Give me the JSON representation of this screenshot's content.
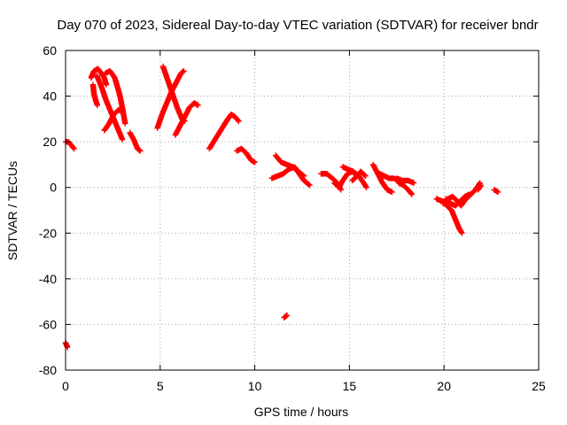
{
  "chart_data": {
    "type": "scatter",
    "title": "Day 070 of 2023, Sidereal Day-to-day VTEC variation (SDTVAR) for receiver bndr",
    "xlabel": "GPS time / hours",
    "ylabel": "SDTVAR / TECUs",
    "xlim": [
      0,
      25
    ],
    "ylim": [
      -80,
      60
    ],
    "xticks": [
      0,
      5,
      10,
      15,
      20,
      25
    ],
    "yticks": [
      -80,
      -60,
      -40,
      -20,
      0,
      20,
      40,
      60
    ],
    "grid": true,
    "marker": "+",
    "color": "#ff0000",
    "series": [
      {
        "name": "SDTVAR",
        "tracks": [
          [
            [
              0.0,
              -68
            ],
            [
              0.05,
              -69
            ],
            [
              0.1,
              -70
            ]
          ],
          [
            [
              0.0,
              20
            ],
            [
              0.15,
              20
            ],
            [
              0.3,
              18.5
            ],
            [
              0.45,
              17
            ]
          ],
          [
            [
              1.35,
              48
            ],
            [
              1.5,
              51
            ],
            [
              1.7,
              52
            ],
            [
              1.9,
              50
            ],
            [
              2.05,
              48
            ],
            [
              2.15,
              45
            ]
          ],
          [
            [
              1.45,
              45
            ],
            [
              1.5,
              41
            ],
            [
              1.6,
              38
            ],
            [
              1.68,
              36
            ]
          ],
          [
            [
              1.65,
              49
            ],
            [
              1.9,
              44
            ],
            [
              2.15,
              38
            ],
            [
              2.4,
              33
            ],
            [
              2.6,
              29
            ],
            [
              2.8,
              25
            ],
            [
              3.0,
              21
            ]
          ],
          [
            [
              2.1,
              50
            ],
            [
              2.35,
              51
            ],
            [
              2.6,
              48
            ],
            [
              2.85,
              41
            ],
            [
              3.0,
              35
            ],
            [
              3.15,
              28
            ]
          ],
          [
            [
              2.05,
              25
            ],
            [
              2.3,
              28
            ],
            [
              2.55,
              32
            ],
            [
              2.8,
              34
            ],
            [
              3.05,
              33
            ]
          ],
          [
            [
              3.4,
              24
            ],
            [
              3.6,
              21
            ],
            [
              3.8,
              17
            ],
            [
              3.95,
              16
            ]
          ],
          [
            [
              4.85,
              26
            ],
            [
              5.1,
              32
            ],
            [
              5.35,
              37
            ],
            [
              5.6,
              42
            ],
            [
              5.85,
              46
            ],
            [
              6.1,
              50
            ],
            [
              6.25,
              51
            ]
          ],
          [
            [
              5.15,
              53
            ],
            [
              5.4,
              47
            ],
            [
              5.65,
              41
            ],
            [
              5.9,
              35
            ],
            [
              6.15,
              30
            ],
            [
              6.3,
              29
            ]
          ],
          [
            [
              5.8,
              23
            ],
            [
              6.05,
              27
            ],
            [
              6.3,
              31
            ],
            [
              6.55,
              35
            ],
            [
              6.8,
              37
            ],
            [
              7.0,
              36
            ]
          ],
          [
            [
              7.6,
              17
            ],
            [
              7.9,
              21
            ],
            [
              8.2,
              25
            ],
            [
              8.5,
              29
            ],
            [
              8.75,
              32
            ],
            [
              8.95,
              31
            ],
            [
              9.15,
              29
            ]
          ],
          [
            [
              9.05,
              16
            ],
            [
              9.3,
              17
            ],
            [
              9.55,
              15
            ],
            [
              9.8,
              12
            ],
            [
              10.0,
              11
            ]
          ],
          [
            [
              11.1,
              14
            ],
            [
              11.4,
              11
            ],
            [
              11.7,
              10
            ],
            [
              12.0,
              9
            ],
            [
              12.3,
              7
            ],
            [
              12.6,
              5
            ]
          ],
          [
            [
              10.9,
              4
            ],
            [
              11.2,
              5
            ],
            [
              11.5,
              6
            ],
            [
              11.8,
              8
            ],
            [
              12.1,
              9
            ],
            [
              12.35,
              6
            ],
            [
              12.6,
              3
            ],
            [
              12.9,
              1
            ]
          ],
          [
            [
              11.55,
              -57
            ],
            [
              11.7,
              -56
            ]
          ],
          [
            [
              13.5,
              6
            ],
            [
              13.8,
              6
            ],
            [
              14.1,
              4
            ],
            [
              14.35,
              2
            ],
            [
              14.55,
              -1
            ]
          ],
          [
            [
              14.2,
              2
            ],
            [
              14.45,
              0
            ],
            [
              14.65,
              3
            ],
            [
              14.9,
              6
            ],
            [
              15.15,
              7
            ],
            [
              15.4,
              5
            ]
          ],
          [
            [
              14.65,
              9
            ],
            [
              14.9,
              8
            ],
            [
              15.2,
              7
            ],
            [
              15.5,
              5
            ],
            [
              15.75,
              2
            ],
            [
              15.9,
              0
            ]
          ],
          [
            [
              15.15,
              3
            ],
            [
              15.4,
              5
            ],
            [
              15.6,
              7
            ],
            [
              15.85,
              5
            ]
          ],
          [
            [
              16.25,
              10
            ],
            [
              16.5,
              6
            ],
            [
              16.75,
              2
            ],
            [
              17.0,
              -1
            ],
            [
              17.25,
              -2
            ]
          ],
          [
            [
              16.6,
              6
            ],
            [
              16.85,
              5
            ],
            [
              17.1,
              4
            ],
            [
              17.35,
              4
            ],
            [
              17.6,
              3
            ]
          ],
          [
            [
              17.6,
              2
            ],
            [
              17.85,
              1
            ],
            [
              18.1,
              -1
            ],
            [
              18.3,
              -3
            ]
          ],
          [
            [
              17.5,
              4
            ],
            [
              17.8,
              3
            ],
            [
              18.1,
              3
            ],
            [
              18.4,
              2
            ]
          ],
          [
            [
              19.6,
              -5
            ],
            [
              19.9,
              -6
            ],
            [
              20.15,
              -8
            ],
            [
              20.4,
              -10
            ],
            [
              20.6,
              -14
            ],
            [
              20.8,
              -18
            ],
            [
              20.95,
              -20
            ]
          ],
          [
            [
              20.1,
              -5
            ],
            [
              20.35,
              -7
            ],
            [
              20.6,
              -8
            ],
            [
              20.85,
              -6
            ],
            [
              21.1,
              -4
            ],
            [
              21.35,
              -3
            ]
          ],
          [
            [
              19.95,
              -7
            ],
            [
              20.2,
              -5
            ],
            [
              20.45,
              -4
            ],
            [
              20.7,
              -6
            ],
            [
              20.9,
              -8
            ],
            [
              21.15,
              -5
            ]
          ],
          [
            [
              21.05,
              -6
            ],
            [
              21.3,
              -4
            ],
            [
              21.55,
              -2
            ],
            [
              21.75,
              0
            ],
            [
              21.9,
              2
            ]
          ],
          [
            [
              21.8,
              -1
            ],
            [
              21.95,
              1
            ]
          ],
          [
            [
              22.65,
              -1
            ],
            [
              22.85,
              -2
            ]
          ]
        ]
      }
    ]
  }
}
